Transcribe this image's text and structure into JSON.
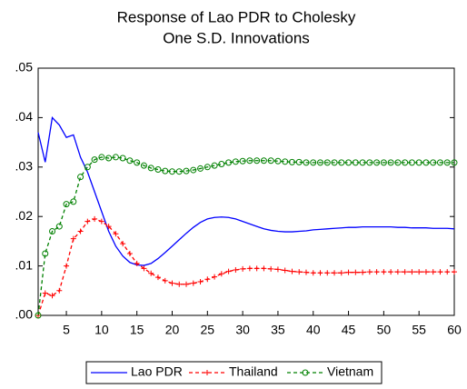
{
  "chart_data": {
    "type": "line",
    "title": [
      "Response of Lao PDR to Cholesky",
      "One S.D. Innovations"
    ],
    "x": [
      1,
      2,
      3,
      4,
      5,
      6,
      7,
      8,
      9,
      10,
      11,
      12,
      13,
      14,
      15,
      16,
      17,
      18,
      19,
      20,
      21,
      22,
      23,
      24,
      25,
      26,
      27,
      28,
      29,
      30,
      31,
      32,
      33,
      34,
      35,
      36,
      37,
      38,
      39,
      40,
      41,
      42,
      43,
      44,
      45,
      46,
      47,
      48,
      49,
      50,
      51,
      52,
      53,
      54,
      55,
      56,
      57,
      58,
      59,
      60
    ],
    "series": [
      {
        "name": "Lao PDR",
        "color": "#0000ff",
        "style": "solid",
        "values": [
          0.037,
          0.031,
          0.04,
          0.0385,
          0.036,
          0.0365,
          0.032,
          0.029,
          0.025,
          0.021,
          0.017,
          0.014,
          0.012,
          0.0107,
          0.0102,
          0.0101,
          0.0105,
          0.0115,
          0.0127,
          0.014,
          0.0153,
          0.0166,
          0.0178,
          0.0188,
          0.0195,
          0.0198,
          0.0199,
          0.0198,
          0.0195,
          0.019,
          0.0185,
          0.018,
          0.0175,
          0.0172,
          0.017,
          0.0169,
          0.0169,
          0.017,
          0.0171,
          0.0173,
          0.0174,
          0.0175,
          0.0176,
          0.0177,
          0.0178,
          0.0178,
          0.0179,
          0.0179,
          0.0179,
          0.0179,
          0.0179,
          0.0178,
          0.0178,
          0.0177,
          0.0177,
          0.0177,
          0.0176,
          0.0176,
          0.0176,
          0.0175
        ]
      },
      {
        "name": "Thailand",
        "color": "#ff0000",
        "style": "dashed",
        "marker": "plus",
        "values": [
          0,
          0.0045,
          0.004,
          0.005,
          0.01,
          0.0155,
          0.017,
          0.019,
          0.0195,
          0.019,
          0.018,
          0.0165,
          0.0145,
          0.0125,
          0.0105,
          0.0095,
          0.0085,
          0.0077,
          0.007,
          0.0065,
          0.0063,
          0.0063,
          0.0065,
          0.0068,
          0.0073,
          0.0078,
          0.0084,
          0.0089,
          0.0092,
          0.0094,
          0.0095,
          0.0095,
          0.0095,
          0.0094,
          0.0093,
          0.0091,
          0.0089,
          0.0088,
          0.0087,
          0.0086,
          0.0086,
          0.0086,
          0.0086,
          0.0086,
          0.0087,
          0.0087,
          0.0087,
          0.0088,
          0.0088,
          0.0088,
          0.0088,
          0.0088,
          0.0088,
          0.0088,
          0.0088,
          0.0088,
          0.0088,
          0.0088,
          0.0088,
          0.0088
        ]
      },
      {
        "name": "Vietnam",
        "color": "#008000",
        "style": "dashed",
        "marker": "circle",
        "values": [
          0,
          0.0125,
          0.017,
          0.018,
          0.0225,
          0.023,
          0.028,
          0.03,
          0.0315,
          0.032,
          0.0318,
          0.032,
          0.0318,
          0.0313,
          0.0309,
          0.0303,
          0.0298,
          0.0295,
          0.0292,
          0.0291,
          0.0291,
          0.0292,
          0.0294,
          0.0297,
          0.03,
          0.0303,
          0.0306,
          0.0309,
          0.0311,
          0.0312,
          0.0313,
          0.0313,
          0.0313,
          0.0313,
          0.0312,
          0.0311,
          0.031,
          0.031,
          0.0309,
          0.0309,
          0.0309,
          0.0309,
          0.0309,
          0.0309,
          0.0309,
          0.0309,
          0.0309,
          0.0309,
          0.0309,
          0.0309,
          0.0309,
          0.0309,
          0.0309,
          0.0309,
          0.0309,
          0.0309,
          0.0309,
          0.0309,
          0.0309,
          0.0309
        ]
      }
    ],
    "xlim": [
      1,
      60
    ],
    "xticks": [
      5,
      10,
      15,
      20,
      25,
      30,
      35,
      40,
      45,
      50,
      55,
      60
    ],
    "ylim": [
      0,
      0.05
    ],
    "yticks": [
      {
        "value": 0,
        "label": ".00"
      },
      {
        "value": 0.01,
        "label": ".01"
      },
      {
        "value": 0.02,
        "label": ".02"
      },
      {
        "value": 0.03,
        "label": ".03"
      },
      {
        "value": 0.04,
        "label": ".04"
      },
      {
        "value": 0.05,
        "label": ".05"
      }
    ],
    "legend": "bottom"
  }
}
